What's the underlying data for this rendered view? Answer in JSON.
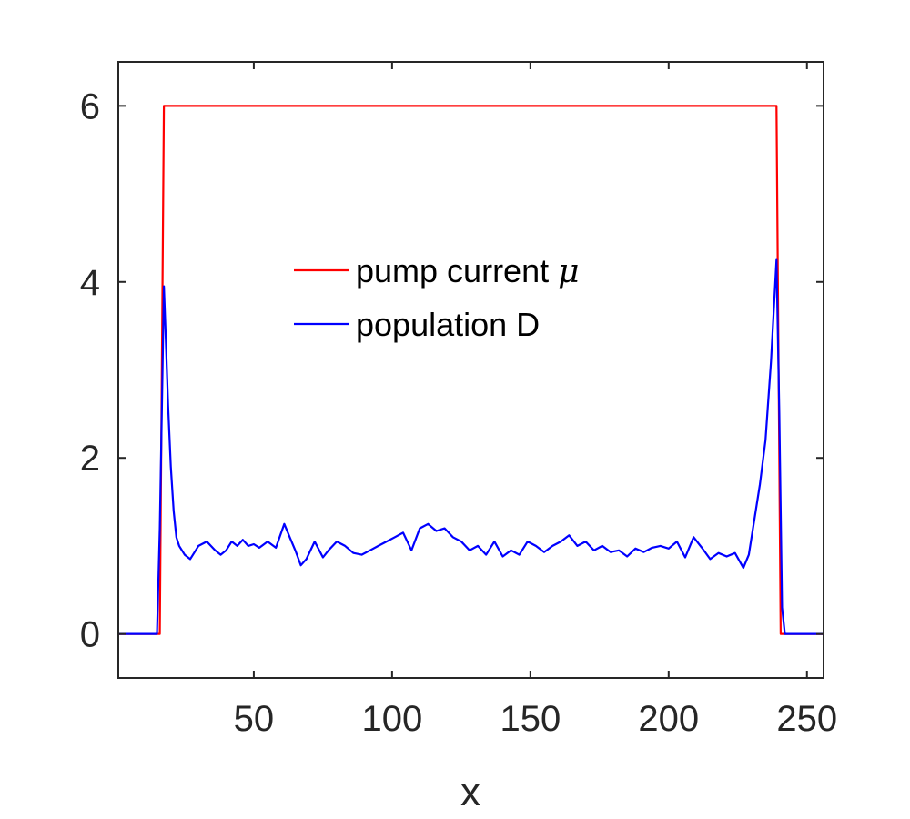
{
  "chart_data": {
    "type": "line",
    "title": "",
    "xlabel": "x",
    "ylabel": "",
    "xlim": [
      1,
      256
    ],
    "ylim": [
      -0.5,
      6.5
    ],
    "xticks": [
      50,
      100,
      150,
      200,
      250
    ],
    "yticks": [
      0,
      2,
      4,
      6
    ],
    "grid": false,
    "legend_position": "center",
    "colors": {
      "pump": "#ff0000",
      "population": "#0000ff",
      "axis": "#262626"
    },
    "series": [
      {
        "name": "pump current μ",
        "name_text": "pump current ",
        "name_symbol": "μ",
        "color": "#ff0000",
        "x": [
          1,
          16,
          17.5,
          239,
          240.5,
          256
        ],
        "y": [
          0,
          0,
          6,
          6,
          0,
          0
        ]
      },
      {
        "name": "population D",
        "color": "#0000ff",
        "x": [
          1,
          15,
          16,
          17,
          17.5,
          18,
          19,
          20,
          21,
          22,
          23,
          25,
          27,
          30,
          33,
          36,
          38,
          40,
          42,
          44,
          46,
          48,
          50,
          52,
          55,
          58,
          61,
          63,
          65,
          67,
          69,
          72,
          75,
          77,
          80,
          83,
          86,
          89,
          92,
          95,
          98,
          101,
          104,
          107,
          110,
          113,
          116,
          119,
          122,
          125,
          128,
          131,
          134,
          137,
          140,
          143,
          146,
          149,
          152,
          155,
          158,
          161,
          164,
          167,
          170,
          173,
          176,
          179,
          182,
          185,
          188,
          191,
          194,
          197,
          200,
          203,
          206,
          209,
          212,
          215,
          218,
          221,
          224,
          227,
          229,
          231,
          233,
          235,
          237,
          239,
          240,
          241,
          242,
          256
        ],
        "y": [
          0,
          0,
          1.2,
          3.0,
          3.95,
          3.5,
          2.6,
          1.9,
          1.4,
          1.1,
          1.0,
          0.9,
          0.85,
          1.0,
          1.05,
          0.95,
          0.9,
          0.95,
          1.05,
          1.0,
          1.07,
          1.0,
          1.02,
          0.98,
          1.05,
          0.98,
          1.25,
          1.1,
          0.95,
          0.78,
          0.85,
          1.05,
          0.87,
          0.95,
          1.05,
          1.0,
          0.92,
          0.9,
          0.95,
          1.0,
          1.05,
          1.1,
          1.15,
          0.95,
          1.2,
          1.25,
          1.17,
          1.2,
          1.1,
          1.05,
          0.95,
          1.0,
          0.9,
          1.05,
          0.88,
          0.95,
          0.9,
          1.05,
          1.0,
          0.93,
          1.0,
          1.05,
          1.12,
          1.0,
          1.05,
          0.95,
          1.0,
          0.93,
          0.95,
          0.88,
          0.97,
          0.93,
          0.98,
          1.0,
          0.97,
          1.05,
          0.87,
          1.1,
          0.98,
          0.85,
          0.92,
          0.88,
          0.92,
          0.75,
          0.9,
          1.3,
          1.7,
          2.2,
          3.1,
          4.25,
          2.5,
          0.3,
          0,
          0
        ]
      }
    ]
  }
}
